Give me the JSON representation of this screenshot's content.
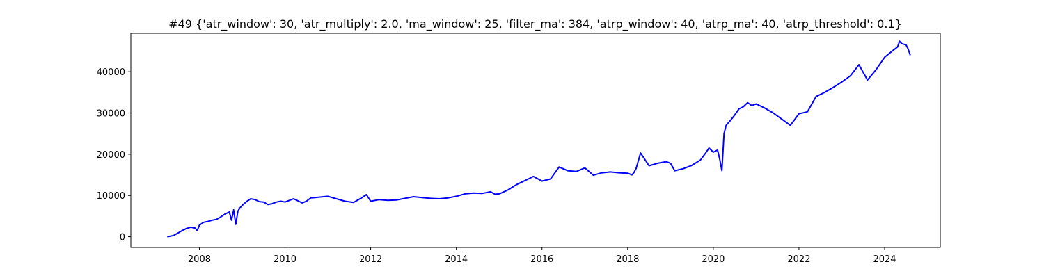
{
  "chart_data": {
    "type": "line",
    "title": "#49 {'atr_window': 30, 'atr_multiply': 2.0, 'ma_window': 25, 'filter_ma': 384, 'atrp_window': 40, 'atrp_ma': 40, 'atrp_threshold': 0.1}",
    "xlabel": "",
    "ylabel": "",
    "xlim": [
      2006.4,
      2025.3
    ],
    "ylim": [
      -2600,
      49300
    ],
    "x_ticks": [
      2008,
      2010,
      2012,
      2014,
      2016,
      2018,
      2020,
      2022,
      2024
    ],
    "x_tick_labels": [
      "2008",
      "2010",
      "2012",
      "2014",
      "2016",
      "2018",
      "2020",
      "2022",
      "2024"
    ],
    "y_ticks": [
      0,
      10000,
      20000,
      30000,
      40000
    ],
    "y_tick_labels": [
      "0",
      "10000",
      "20000",
      "30000",
      "40000"
    ],
    "grid": false,
    "legend": "none",
    "series": [
      {
        "color": "#0000ff",
        "x": [
          2007.25,
          2007.4,
          2007.5,
          2007.6,
          2007.7,
          2007.8,
          2007.9,
          2007.95,
          2008.0,
          2008.1,
          2008.2,
          2008.3,
          2008.4,
          2008.5,
          2008.6,
          2008.7,
          2008.75,
          2008.8,
          2008.85,
          2008.9,
          2008.95,
          2009.0,
          2009.1,
          2009.2,
          2009.3,
          2009.4,
          2009.5,
          2009.6,
          2009.7,
          2009.8,
          2009.9,
          2010.0,
          2010.1,
          2010.2,
          2010.3,
          2010.4,
          2010.5,
          2010.6,
          2010.7,
          2010.8,
          2010.9,
          2011.0,
          2011.2,
          2011.4,
          2011.6,
          2011.8,
          2011.9,
          2012.0,
          2012.2,
          2012.4,
          2012.6,
          2012.8,
          2013.0,
          2013.2,
          2013.4,
          2013.6,
          2013.8,
          2014.0,
          2014.2,
          2014.4,
          2014.6,
          2014.8,
          2014.9,
          2015.0,
          2015.2,
          2015.4,
          2015.6,
          2015.8,
          2016.0,
          2016.2,
          2016.4,
          2016.6,
          2016.8,
          2017.0,
          2017.2,
          2017.4,
          2017.6,
          2017.8,
          2018.0,
          2018.1,
          2018.15,
          2018.2,
          2018.3,
          2018.5,
          2018.7,
          2018.9,
          2019.0,
          2019.1,
          2019.3,
          2019.5,
          2019.7,
          2019.8,
          2019.9,
          2020.0,
          2020.1,
          2020.15,
          2020.2,
          2020.25,
          2020.3,
          2020.4,
          2020.5,
          2020.6,
          2020.7,
          2020.8,
          2020.9,
          2021.0,
          2021.2,
          2021.4,
          2021.6,
          2021.8,
          2022.0,
          2022.2,
          2022.4,
          2022.6,
          2022.8,
          2023.0,
          2023.2,
          2023.4,
          2023.6,
          2023.8,
          2024.0,
          2024.2,
          2024.3,
          2024.35,
          2024.4,
          2024.5,
          2024.55,
          2024.6
        ],
        "y": [
          0,
          300,
          900,
          1500,
          2000,
          2300,
          2100,
          1500,
          2800,
          3500,
          3700,
          4000,
          4200,
          4800,
          5500,
          6000,
          4000,
          6500,
          3000,
          6200,
          7000,
          7600,
          8500,
          9200,
          9000,
          8500,
          8400,
          7800,
          8000,
          8400,
          8600,
          8400,
          8800,
          9200,
          8700,
          8200,
          8600,
          9400,
          9500,
          9600,
          9700,
          9800,
          9200,
          8600,
          8300,
          9500,
          10200,
          8600,
          9000,
          8800,
          8900,
          9300,
          9700,
          9500,
          9300,
          9200,
          9400,
          9800,
          10400,
          10600,
          10500,
          10900,
          10300,
          10400,
          11300,
          12600,
          13600,
          14600,
          13500,
          14000,
          16900,
          16000,
          15800,
          16700,
          14900,
          15500,
          15700,
          15500,
          15400,
          15000,
          15600,
          16600,
          20300,
          17200,
          17800,
          18200,
          17800,
          16000,
          16500,
          17300,
          18600,
          20000,
          21500,
          20500,
          21000,
          18800,
          16000,
          25000,
          27000,
          28200,
          29500,
          31000,
          31500,
          32500,
          31800,
          32200,
          31200,
          30000,
          28500,
          27000,
          29800,
          30300,
          34000,
          35000,
          36200,
          37500,
          39000,
          41700,
          38000,
          40500,
          43500,
          45200,
          46000,
          47400,
          46800,
          46500,
          45500,
          44000
        ]
      }
    ]
  }
}
